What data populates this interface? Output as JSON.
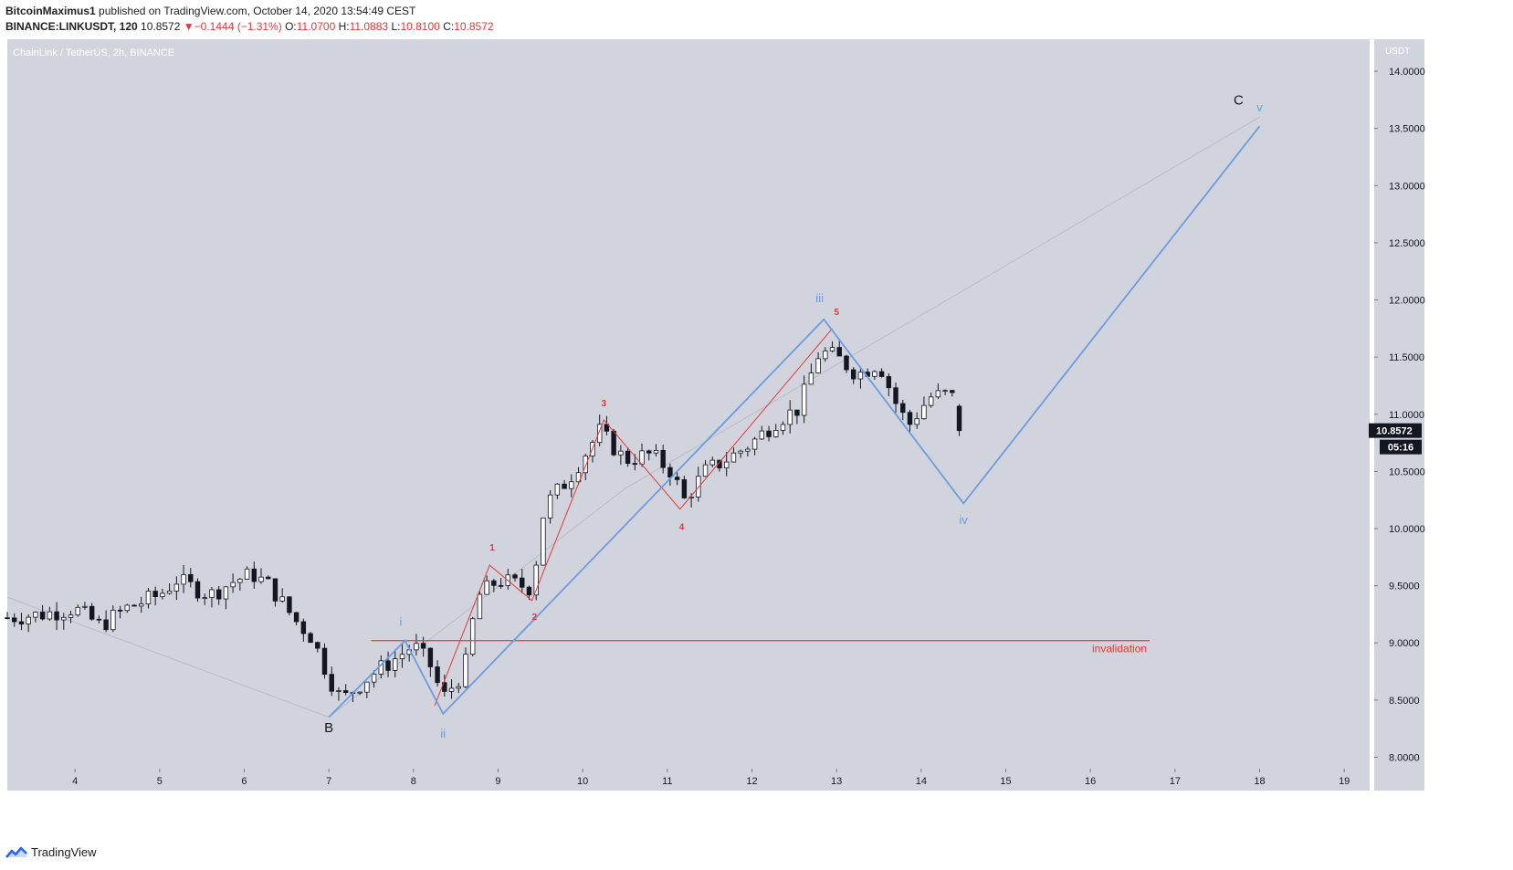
{
  "header": {
    "author": "BitcoinMaximus1",
    "published_text": "published on TradingView.com, October 14, 2020 13:54:49 CEST",
    "symbol": "BINANCE:LINKUSDT, 120",
    "last": "10.8572",
    "change_arrow": "▼",
    "change": "−0.1444 (−1.31%)",
    "o_label": "O:",
    "o_value": "11.0700",
    "h_label": "H:",
    "h_value": "11.0883",
    "l_label": "L:",
    "l_value": "10.8100",
    "c_label": "C:",
    "c_value": "10.8572"
  },
  "footer": {
    "brand": "TradingView",
    "logo_icon": "tradingview-logo-icon"
  },
  "chart_data": {
    "type": "candlestick",
    "title": "ChainLink / TetherUS, 2h, BINANCE",
    "currency": "USDT",
    "x_ticks": [
      "4",
      "5",
      "6",
      "7",
      "8",
      "9",
      "10",
      "11",
      "12",
      "13",
      "14",
      "15",
      "16",
      "17",
      "18",
      "19"
    ],
    "y_ticks": [
      "8.0000",
      "8.5000",
      "9.0000",
      "9.5000",
      "10.0000",
      "10.5000",
      "11.0000",
      "11.5000",
      "12.0000",
      "12.5000",
      "13.0000",
      "13.5000",
      "14.0000"
    ],
    "ylim": [
      7.9,
      14.28
    ],
    "xlim": [
      3.2,
      19.3
    ],
    "last_price_label": "10.8572",
    "countdown_label": "05:16",
    "colors": {
      "background": "#d1d4dc",
      "wave_blue": "#6c9be0",
      "wave_red": "#e53935",
      "candle_up": "#ffffff",
      "candle_down": "#131722"
    },
    "anchors": [
      [
        3.2,
        9.22
      ],
      [
        3.6,
        9.25
      ],
      [
        4.0,
        9.3
      ],
      [
        4.3,
        9.15
      ],
      [
        4.6,
        9.3
      ],
      [
        5.0,
        9.42
      ],
      [
        5.2,
        9.55
      ],
      [
        5.6,
        9.42
      ],
      [
        5.9,
        9.55
      ],
      [
        6.1,
        9.6
      ],
      [
        6.3,
        9.5
      ],
      [
        6.6,
        9.2
      ],
      [
        6.8,
        9.05
      ],
      [
        7.0,
        8.7
      ],
      [
        7.15,
        8.5
      ],
      [
        7.5,
        8.72
      ],
      [
        7.8,
        8.87
      ],
      [
        8.0,
        8.98
      ],
      [
        8.2,
        8.8
      ],
      [
        8.35,
        8.52
      ],
      [
        8.6,
        8.75
      ],
      [
        8.75,
        9.4
      ],
      [
        9.0,
        9.55
      ],
      [
        9.4,
        9.48
      ],
      [
        9.55,
        10.2
      ],
      [
        9.85,
        10.45
      ],
      [
        10.2,
        10.85
      ],
      [
        10.5,
        10.6
      ],
      [
        10.8,
        10.65
      ],
      [
        11.05,
        10.5
      ],
      [
        11.2,
        10.25
      ],
      [
        11.45,
        10.5
      ],
      [
        11.8,
        10.65
      ],
      [
        12.0,
        10.75
      ],
      [
        12.3,
        10.95
      ],
      [
        12.55,
        11.05
      ],
      [
        12.8,
        11.55
      ],
      [
        13.0,
        11.5
      ],
      [
        13.25,
        11.35
      ],
      [
        13.5,
        11.45
      ],
      [
        13.7,
        11.1
      ],
      [
        13.85,
        10.9
      ],
      [
        14.1,
        11.15
      ],
      [
        14.35,
        11.18
      ],
      [
        14.52,
        10.86
      ]
    ],
    "annotations": {
      "invalidation": {
        "price": 9.02,
        "x_start": 7.5,
        "x_end": 16.7,
        "label": "invalidation"
      },
      "blue_wave_path": [
        [
          7.0,
          8.35
        ],
        [
          7.9,
          9.02
        ],
        [
          8.35,
          8.38
        ],
        [
          12.85,
          11.83
        ],
        [
          14.5,
          10.22
        ],
        [
          18.0,
          13.52
        ]
      ],
      "red_wave_path": [
        [
          8.25,
          8.45
        ],
        [
          8.9,
          9.68
        ],
        [
          9.4,
          9.37
        ],
        [
          10.25,
          10.95
        ],
        [
          11.15,
          10.17
        ],
        [
          12.95,
          11.75
        ]
      ],
      "gray_trend_path": [
        [
          3.2,
          9.4
        ],
        [
          7.0,
          8.35
        ],
        [
          10.5,
          10.35
        ],
        [
          18.0,
          13.6
        ]
      ],
      "blue_labels": [
        {
          "text": "i",
          "x": 7.85,
          "y": 9.15
        },
        {
          "text": "ii",
          "x": 8.35,
          "y": 8.17
        },
        {
          "text": "iii",
          "x": 12.8,
          "y": 11.98
        },
        {
          "text": "iv",
          "x": 14.5,
          "y": 10.04
        },
        {
          "text": "v",
          "x": 18.0,
          "y": 13.65
        }
      ],
      "red_labels": [
        {
          "text": "1",
          "x": 8.93,
          "y": 9.81
        },
        {
          "text": "2",
          "x": 9.43,
          "y": 9.2
        },
        {
          "text": "3",
          "x": 10.25,
          "y": 11.07
        },
        {
          "text": "4",
          "x": 11.17,
          "y": 9.99
        },
        {
          "text": "5",
          "x": 13.0,
          "y": 11.87
        }
      ],
      "black_labels": [
        {
          "text": "B",
          "x": 7.0,
          "y": 8.22
        },
        {
          "text": "C",
          "x": 17.75,
          "y": 13.71
        }
      ]
    }
  }
}
